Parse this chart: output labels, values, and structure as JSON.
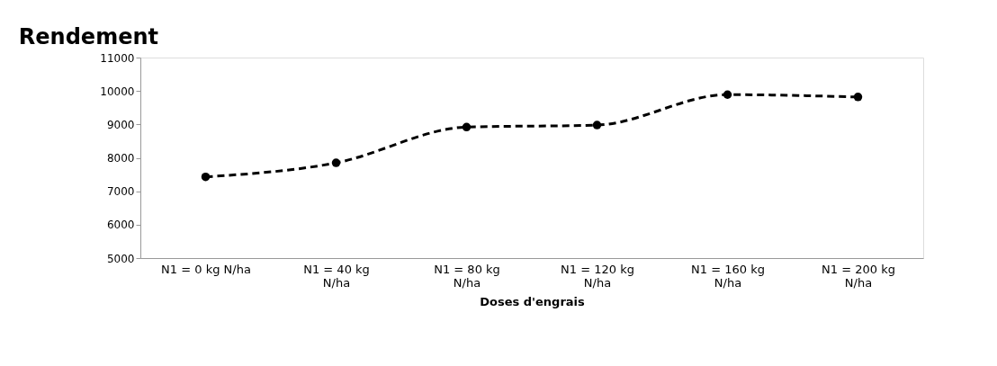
{
  "chart_data": {
    "type": "line",
    "title": "Rendement",
    "xlabel": "Doses d'engrais",
    "categories": [
      "N1 = 0 kg N/ha",
      "N1 = 40 kg N/ha",
      "N1 = 80 kg N/ha",
      "N1 = 120 kg N/ha",
      "N1 = 160 kg N/ha",
      "N1 = 200 kg N/ha"
    ],
    "series": [
      {
        "color": "#000000",
        "values": [
          7430,
          7850,
          8920,
          8980,
          9890,
          9820
        ]
      }
    ],
    "ylim": [
      5000,
      11000
    ],
    "yticks": [
      5000,
      6000,
      7000,
      8000,
      9000,
      10000,
      11000
    ],
    "grid": false,
    "legend": false,
    "marker": "circle",
    "line_style": "dashed"
  }
}
